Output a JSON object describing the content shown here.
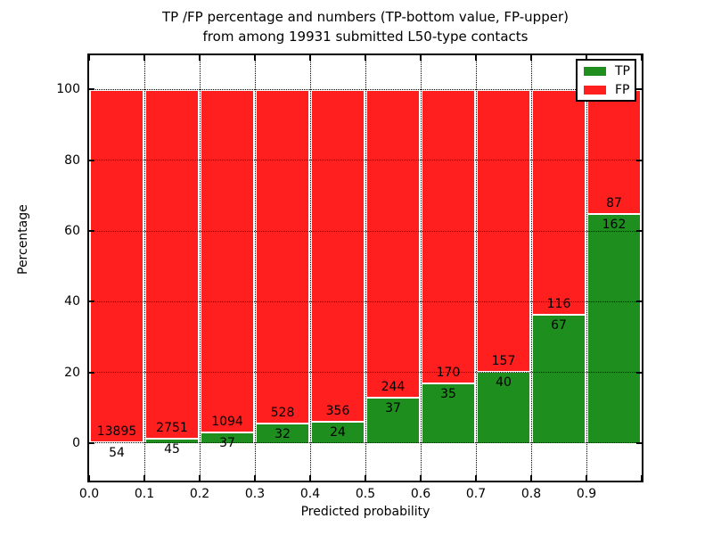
{
  "title": {
    "line1": "TP /FP percentage and numbers (TP-bottom value, FP-upper)",
    "line2": "from among 19931 submitted L50-type contacts"
  },
  "axes": {
    "ylabel": "Percentage",
    "xlabel": "Predicted probability",
    "x_tick_labels": [
      "0.0",
      "0.1",
      "0.2",
      "0.3",
      "0.4",
      "0.5",
      "0.6",
      "0.7",
      "0.8",
      "0.9"
    ],
    "y_tick_labels": [
      "0",
      "20",
      "40",
      "60",
      "80",
      "100"
    ]
  },
  "legend": {
    "items": [
      {
        "label": "TP",
        "color": "#1e8f1e"
      },
      {
        "label": "FP",
        "color": "#ff1f1f"
      }
    ]
  },
  "colors": {
    "tp": "#1e8f1e",
    "fp": "#ff1f1f",
    "bar_edge": "#ffffff",
    "grid": "#000000"
  },
  "chart_data": {
    "type": "bar",
    "stacked": true,
    "normalized_to_percent": true,
    "title": "TP /FP percentage and numbers (TP-bottom value, FP-upper) from among 19931 submitted L50-type contacts",
    "xlabel": "Predicted probability",
    "ylabel": "Percentage",
    "categories": [
      "0.0",
      "0.1",
      "0.2",
      "0.3",
      "0.4",
      "0.5",
      "0.6",
      "0.7",
      "0.8",
      "0.9"
    ],
    "bin_width": 0.1,
    "series": [
      {
        "name": "TP",
        "color": "#1e8f1e",
        "values": [
          54,
          45,
          37,
          32,
          24,
          37,
          35,
          40,
          67,
          162
        ]
      },
      {
        "name": "FP",
        "color": "#ff1f1f",
        "values": [
          13895,
          2751,
          1094,
          528,
          356,
          244,
          170,
          157,
          116,
          87
        ]
      }
    ],
    "tp_percent_of_bin": [
      0.39,
      1.61,
      3.27,
      5.71,
      6.32,
      13.17,
      17.07,
      20.3,
      36.61,
      65.06
    ],
    "total_contacts": 19931,
    "y_ticks": [
      0,
      20,
      40,
      60,
      80,
      100
    ],
    "ylim": [
      -10.6,
      109.7
    ],
    "xlim": [
      0,
      1
    ],
    "grid": "dotted",
    "legend_position": "upper right"
  }
}
